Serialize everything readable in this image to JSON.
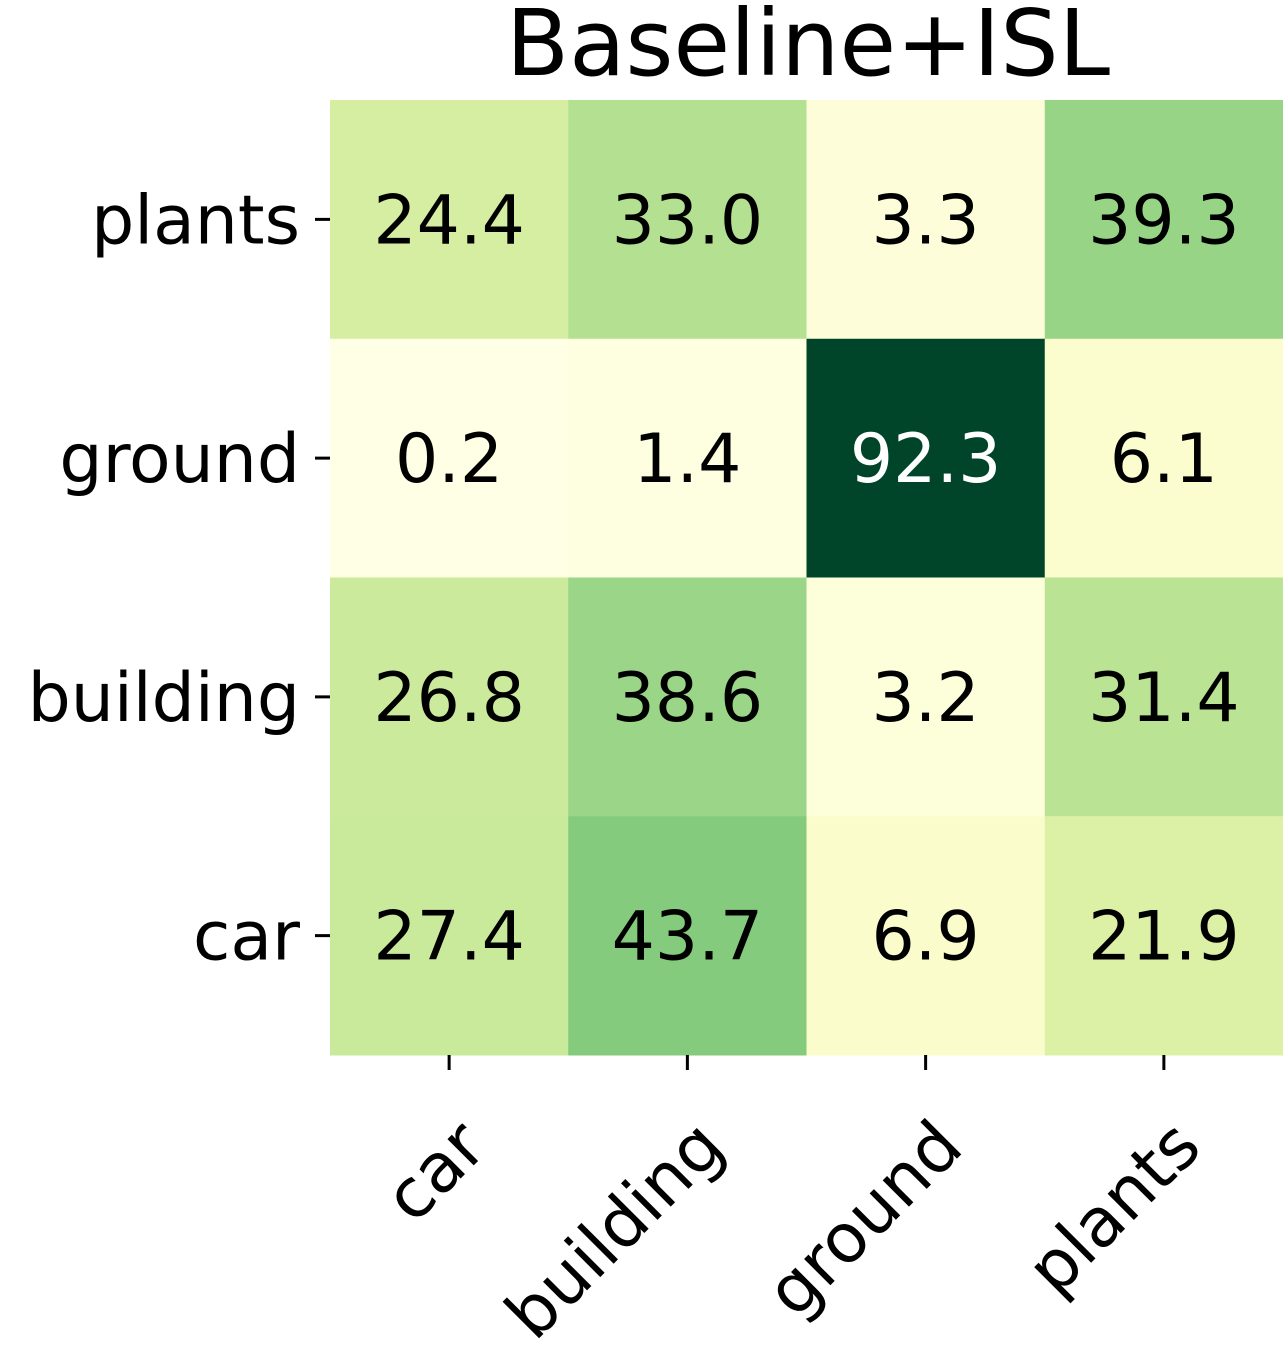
{
  "chart_data": {
    "type": "heatmap",
    "title": "Baseline+ISL",
    "xlabel": "",
    "ylabel": "",
    "x_categories": [
      "car",
      "building",
      "ground",
      "plants"
    ],
    "y_categories": [
      "plants",
      "ground",
      "building",
      "car"
    ],
    "values": [
      [
        24.4,
        33.0,
        3.3,
        39.3
      ],
      [
        0.2,
        1.4,
        92.3,
        6.1
      ],
      [
        26.8,
        38.6,
        3.2,
        31.4
      ],
      [
        27.4,
        43.7,
        6.9,
        21.9
      ]
    ],
    "value_labels": [
      [
        "24.4",
        "33.0",
        "3.3",
        "39.3"
      ],
      [
        "0.2",
        "1.4",
        "92.3",
        "6.1"
      ],
      [
        "26.8",
        "38.6",
        "3.2",
        "31.4"
      ],
      [
        "27.4",
        "43.7",
        "6.9",
        "21.9"
      ]
    ],
    "colormap": "YlGn",
    "vmin": 0.2,
    "vmax": 92.3,
    "colorbar": false,
    "grid": false
  }
}
